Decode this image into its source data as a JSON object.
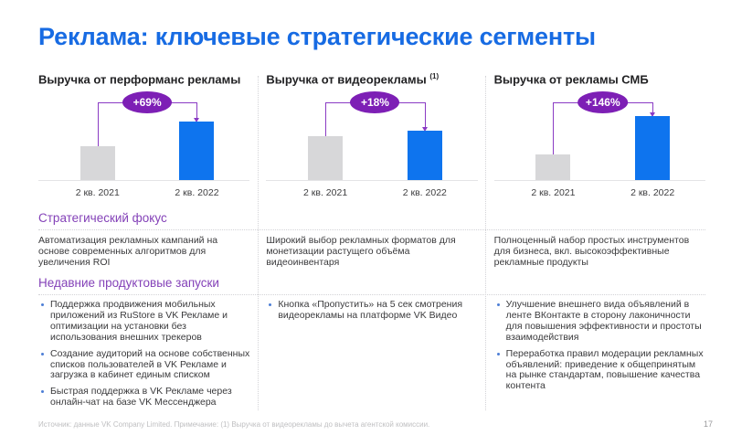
{
  "slide": {
    "title": "Реклама: ключевые стратегические сегменты",
    "footer_note": "Источник: данные VK Company Limited. Примечание: (1) Выручка от видеорекламы до вычета агентской комиссии.",
    "page_number": "17"
  },
  "sections": {
    "focus_label": "Стратегический фокус",
    "launches_label": "Недавние продуктовые запуски"
  },
  "colors": {
    "accent_blue": "#176BE3",
    "bar_blue": "#0E74EE",
    "bar_gray": "#D7D7D9",
    "badge_purple": "#7D1FB5",
    "bracket_purple": "#8A3BC4",
    "heading_purple": "#8442B8",
    "bullet_blue": "#4D7FD6"
  },
  "columns": [
    {
      "header": "Выручка от перформанс рекламы",
      "header_sup": "",
      "growth": "+69%",
      "bar_labels": [
        "2 кв. 2021",
        "2 кв. 2022"
      ],
      "bar_heights": {
        "prev": 37,
        "curr": 64
      },
      "focus": "Автоматизация рекламных кампаний на основе современных алгоритмов для увеличения ROI",
      "launches": [
        "Поддержка продвижения мобильных приложений из RuStore в VK Рекламе и оптимизации на установки без использования внешних трекеров",
        "Создание аудиторий на основе собственных списков пользователей в VK Рекламе и загрузка в кабинет единым списком",
        "Быстрая поддержка в VK Рекламе через онлайн-чат на базе VK Мессенджера"
      ]
    },
    {
      "header": "Выручка от видеорекламы",
      "header_sup": "(1)",
      "growth": "+18%",
      "bar_labels": [
        "2 кв. 2021",
        "2 кв. 2022"
      ],
      "bar_heights": {
        "prev": 48,
        "curr": 54
      },
      "focus": "Широкий выбор рекламных форматов для монетизации растущего объёма видеоинвентаря",
      "launches": [
        "Кнопка «Пропустить» на 5 сек смотрения видеорекламы на платформе VK Видео"
      ]
    },
    {
      "header": "Выручка от рекламы СМБ",
      "header_sup": "",
      "growth": "+146%",
      "bar_labels": [
        "2 кв. 2021",
        "2 кв. 2022"
      ],
      "bar_heights": {
        "prev": 28,
        "curr": 70
      },
      "focus": "Полноценный набор простых инструментов для бизнеса, вкл. высокоэффективные рекламные продукты",
      "launches": [
        "Улучшение внешнего вида объявлений в ленте ВКонтакте в сторону лаконичности для повышения эффективности и простоты взаимодействия",
        "Переработка правил модерации рекламных объявлений: приведение к общепринятым на рынке стандартам, повышение качества контента"
      ]
    }
  ],
  "chart_data": [
    {
      "type": "bar",
      "title": "Выручка от перформанс рекламы",
      "categories": [
        "2 кв. 2021",
        "2 кв. 2022"
      ],
      "values_relative": [
        37,
        64
      ],
      "growth_label": "+69%",
      "growth_pct": 69,
      "ylabel": "",
      "xlabel": "",
      "grid": false,
      "legend": false
    },
    {
      "type": "bar",
      "title": "Выручка от видеорекламы (1)",
      "categories": [
        "2 кв. 2021",
        "2 кв. 2022"
      ],
      "values_relative": [
        48,
        54
      ],
      "growth_label": "+18%",
      "growth_pct": 18,
      "ylabel": "",
      "xlabel": "",
      "grid": false,
      "legend": false
    },
    {
      "type": "bar",
      "title": "Выручка от рекламы СМБ",
      "categories": [
        "2 кв. 2021",
        "2 кв. 2022"
      ],
      "values_relative": [
        28,
        70
      ],
      "growth_label": "+146%",
      "growth_pct": 146,
      "ylabel": "",
      "xlabel": "",
      "grid": false,
      "legend": false
    }
  ]
}
